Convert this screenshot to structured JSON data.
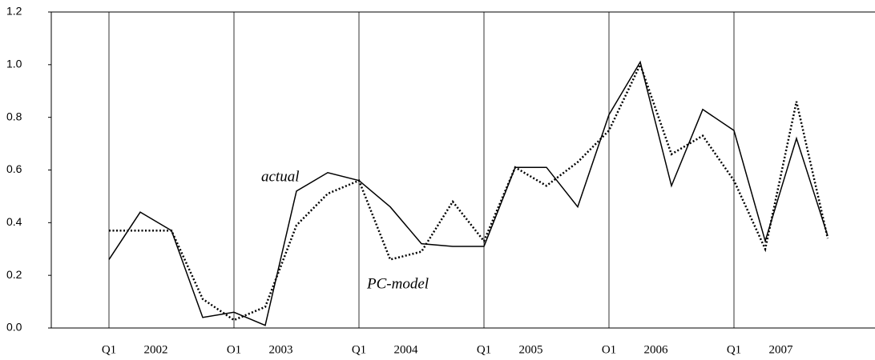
{
  "chart_data": {
    "type": "line",
    "categories": [
      "Q1",
      null,
      null,
      null,
      "O1",
      null,
      null,
      null,
      "Q1",
      null,
      null,
      null,
      "Q1",
      null,
      null,
      null,
      "O1",
      null,
      null,
      null,
      "Q1",
      null,
      null,
      null
    ],
    "year_labels": [
      "2002",
      "2003",
      "2004",
      "2005",
      "2006",
      "2007"
    ],
    "annotations": [
      "actual",
      "PC-model"
    ],
    "series": [
      {
        "name": "actual",
        "color": "#000000",
        "style": "solid",
        "values": [
          0.26,
          0.44,
          0.37,
          0.04,
          0.06,
          0.01,
          0.52,
          0.59,
          0.56,
          0.46,
          0.32,
          0.31,
          0.31,
          0.61,
          0.61,
          0.46,
          0.81,
          1.01,
          0.54,
          0.83,
          0.75,
          0.33,
          0.72,
          0.35
        ]
      },
      {
        "name": "PC-model",
        "color": "#000000",
        "style": "dotted",
        "values": [
          0.37,
          0.37,
          0.37,
          0.11,
          0.03,
          0.08,
          0.39,
          0.51,
          0.56,
          0.26,
          0.29,
          0.48,
          0.33,
          0.61,
          0.54,
          0.63,
          0.75,
          1.0,
          0.66,
          0.73,
          0.56,
          0.3,
          0.86,
          0.34
        ]
      }
    ],
    "ylim": [
      0,
      1.2
    ],
    "yticks": [
      {
        "value": 0,
        "label": "0.0"
      },
      0.2,
      0.4,
      0.6,
      0.8,
      {
        "value": 1,
        "label": "1.0"
      },
      1.2
    ]
  }
}
